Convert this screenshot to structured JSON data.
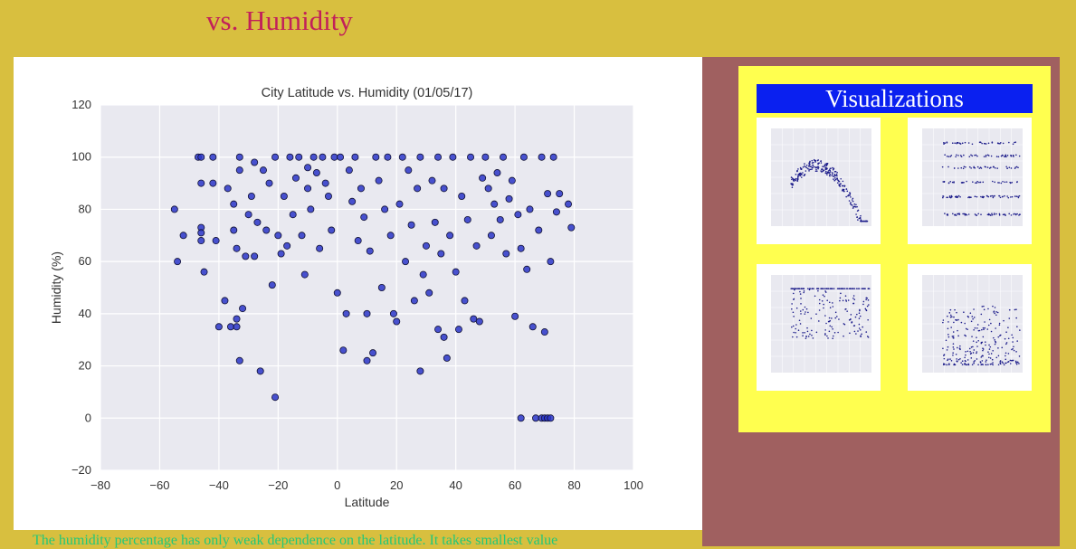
{
  "page": {
    "title": "vs. Humidity",
    "description": "The humidity percentage has only weak dependence on the latitude. It takes smallest value"
  },
  "sidebar": {
    "heading": "Visualizations",
    "thumbnails": [
      {
        "label": "City Latitude vs. Max Temperature (01/05/17)",
        "name": "thumbnail-max-temperature"
      },
      {
        "label": "City Latitude vs. Cloudiness (01/05/17)",
        "name": "thumbnail-cloudiness"
      },
      {
        "label": "City Latitude vs. Humidity (01/05/17)",
        "name": "thumbnail-humidity"
      },
      {
        "label": "City Latitude vs. Wind Speed (01/05/17)",
        "name": "thumbnail-wind-speed"
      }
    ]
  },
  "colors": {
    "background": "#d8bf3f",
    "title": "#c2205a",
    "sidebar": "#a06060",
    "viz_box": "#ffff4f",
    "viz_heading": "#0a20f0",
    "description": "#22c77a",
    "point": "#2a35c8"
  },
  "chart_data": {
    "type": "scatter",
    "title": "City Latitude vs. Humidity (01/05/17)",
    "xlabel": "Latitude",
    "ylabel": "Humidity (%)",
    "xlim": [
      -80,
      100
    ],
    "ylim": [
      -20,
      120
    ],
    "xticks": [
      "−80",
      "−60",
      "−40",
      "−20",
      "0",
      "20",
      "40",
      "60",
      "80",
      "100"
    ],
    "yticks": [
      "−20",
      "0",
      "20",
      "40",
      "60",
      "80",
      "100",
      "120"
    ],
    "grid": true,
    "points": [
      [
        -55,
        80
      ],
      [
        -54,
        60
      ],
      [
        -52,
        70
      ],
      [
        -47,
        100
      ],
      [
        -46,
        100
      ],
      [
        -46,
        90
      ],
      [
        -46,
        73
      ],
      [
        -46,
        71
      ],
      [
        -46,
        68
      ],
      [
        -45,
        56
      ],
      [
        -42,
        90
      ],
      [
        -42,
        100
      ],
      [
        -41,
        68
      ],
      [
        -40,
        35
      ],
      [
        -38,
        45
      ],
      [
        -37,
        88
      ],
      [
        -36,
        35
      ],
      [
        -35,
        82
      ],
      [
        -35,
        72
      ],
      [
        -34,
        65
      ],
      [
        -34,
        35
      ],
      [
        -34,
        38
      ],
      [
        -33,
        100
      ],
      [
        -33,
        95
      ],
      [
        -33,
        22
      ],
      [
        -32,
        42
      ],
      [
        -31,
        62
      ],
      [
        -30,
        78
      ],
      [
        -29,
        85
      ],
      [
        -28,
        98
      ],
      [
        -28,
        62
      ],
      [
        -27,
        75
      ],
      [
        -26,
        18
      ],
      [
        -25,
        95
      ],
      [
        -24,
        72
      ],
      [
        -23,
        90
      ],
      [
        -22,
        51
      ],
      [
        -21,
        8
      ],
      [
        -21,
        100
      ],
      [
        -20,
        70
      ],
      [
        -19,
        63
      ],
      [
        -18,
        85
      ],
      [
        -17,
        66
      ],
      [
        -16,
        100
      ],
      [
        -15,
        78
      ],
      [
        -14,
        92
      ],
      [
        -13,
        100
      ],
      [
        -12,
        70
      ],
      [
        -11,
        55
      ],
      [
        -10,
        96
      ],
      [
        -10,
        88
      ],
      [
        -9,
        80
      ],
      [
        -8,
        100
      ],
      [
        -7,
        94
      ],
      [
        -6,
        65
      ],
      [
        -5,
        100
      ],
      [
        -4,
        90
      ],
      [
        -3,
        85
      ],
      [
        -2,
        72
      ],
      [
        -1,
        100
      ],
      [
        0,
        48
      ],
      [
        1,
        100
      ],
      [
        2,
        26
      ],
      [
        3,
        40
      ],
      [
        4,
        95
      ],
      [
        5,
        83
      ],
      [
        6,
        100
      ],
      [
        7,
        68
      ],
      [
        8,
        88
      ],
      [
        9,
        77
      ],
      [
        10,
        22
      ],
      [
        10,
        40
      ],
      [
        11,
        64
      ],
      [
        12,
        25
      ],
      [
        13,
        100
      ],
      [
        14,
        91
      ],
      [
        15,
        50
      ],
      [
        16,
        80
      ],
      [
        17,
        100
      ],
      [
        18,
        70
      ],
      [
        19,
        40
      ],
      [
        20,
        37
      ],
      [
        21,
        82
      ],
      [
        22,
        100
      ],
      [
        23,
        60
      ],
      [
        24,
        95
      ],
      [
        25,
        74
      ],
      [
        26,
        45
      ],
      [
        27,
        88
      ],
      [
        28,
        18
      ],
      [
        28,
        100
      ],
      [
        29,
        55
      ],
      [
        30,
        66
      ],
      [
        31,
        48
      ],
      [
        32,
        91
      ],
      [
        33,
        75
      ],
      [
        34,
        34
      ],
      [
        34,
        100
      ],
      [
        35,
        63
      ],
      [
        36,
        31
      ],
      [
        36,
        88
      ],
      [
        37,
        23
      ],
      [
        38,
        70
      ],
      [
        39,
        100
      ],
      [
        40,
        56
      ],
      [
        41,
        34
      ],
      [
        42,
        85
      ],
      [
        43,
        45
      ],
      [
        44,
        76
      ],
      [
        45,
        100
      ],
      [
        46,
        38
      ],
      [
        47,
        66
      ],
      [
        48,
        37
      ],
      [
        49,
        92
      ],
      [
        50,
        100
      ],
      [
        51,
        88
      ],
      [
        52,
        70
      ],
      [
        53,
        82
      ],
      [
        54,
        94
      ],
      [
        55,
        76
      ],
      [
        56,
        100
      ],
      [
        57,
        63
      ],
      [
        58,
        84
      ],
      [
        59,
        91
      ],
      [
        60,
        39
      ],
      [
        61,
        78
      ],
      [
        62,
        65
      ],
      [
        62,
        0
      ],
      [
        63,
        100
      ],
      [
        64,
        57
      ],
      [
        65,
        80
      ],
      [
        66,
        35
      ],
      [
        67,
        0
      ],
      [
        68,
        72
      ],
      [
        69,
        100
      ],
      [
        69,
        0
      ],
      [
        70,
        33
      ],
      [
        70,
        0
      ],
      [
        71,
        86
      ],
      [
        71,
        0
      ],
      [
        72,
        60
      ],
      [
        72,
        0
      ],
      [
        73,
        100
      ],
      [
        74,
        79
      ],
      [
        75,
        86
      ],
      [
        78,
        82
      ],
      [
        79,
        73
      ]
    ]
  }
}
